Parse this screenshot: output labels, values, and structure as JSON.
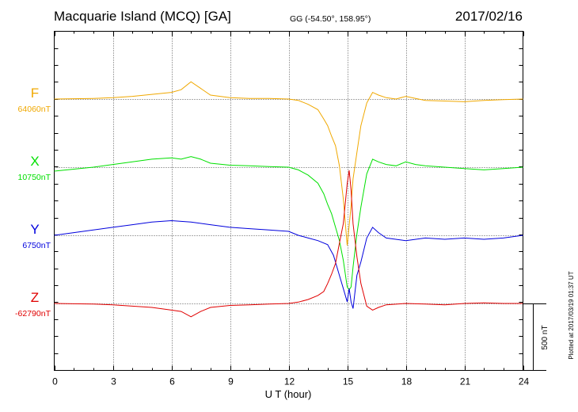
{
  "header": {
    "title": "Macquarie Island (MCQ)  [GA]",
    "coords": "GG (-54.50°, 158.95°)",
    "date": "2017/02/16"
  },
  "side_note": "Plotted at 2017/03/19 01:37 UT",
  "scale_bar": {
    "label": "500 nT",
    "value": 500,
    "unit": "nT"
  },
  "chart_data": {
    "type": "line",
    "xlabel": "U T (hour)",
    "xlim": [
      0,
      24
    ],
    "xticks": [
      "0",
      "3",
      "6",
      "9",
      "12",
      "15",
      "18",
      "21",
      "24"
    ],
    "grid": true,
    "units": "nT",
    "series": [
      {
        "name": "F",
        "baseline_label": "64060nT",
        "baseline": 64060,
        "color": "#f0a800",
        "x": [
          0,
          2,
          3,
          4,
          5,
          6,
          6.5,
          7,
          7.5,
          8,
          9,
          10,
          11,
          12,
          12.5,
          13,
          13.5,
          13.8,
          14.0,
          14.2,
          14.4,
          14.6,
          14.8,
          15.0,
          15.1,
          15.2,
          15.3,
          15.5,
          15.7,
          16.0,
          16.3,
          16.6,
          17,
          17.5,
          18,
          18.5,
          19,
          20,
          21,
          22,
          23,
          24
        ],
        "values": [
          0,
          5,
          10,
          20,
          35,
          50,
          70,
          130,
          80,
          30,
          10,
          5,
          5,
          0,
          -10,
          -40,
          -80,
          -150,
          -200,
          -280,
          -350,
          -500,
          -750,
          -1100,
          -950,
          -800,
          -600,
          -400,
          -200,
          -30,
          50,
          30,
          10,
          0,
          20,
          5,
          -10,
          -15,
          -20,
          -10,
          -5,
          0
        ]
      },
      {
        "name": "X",
        "baseline_label": "10750nT",
        "baseline": 10750,
        "color": "#00e000",
        "x": [
          0,
          2,
          3,
          4,
          5,
          6,
          6.5,
          7,
          7.5,
          8,
          9,
          10,
          11,
          12,
          12.5,
          13,
          13.5,
          13.8,
          14.0,
          14.2,
          14.4,
          14.6,
          14.8,
          15.0,
          15.1,
          15.2,
          15.3,
          15.5,
          15.7,
          16.0,
          16.3,
          16.6,
          17,
          17.5,
          18,
          18.5,
          19,
          20,
          21,
          22,
          23,
          24
        ],
        "values": [
          -30,
          0,
          20,
          40,
          60,
          70,
          60,
          80,
          60,
          30,
          15,
          10,
          5,
          0,
          -20,
          -60,
          -120,
          -200,
          -280,
          -350,
          -450,
          -550,
          -700,
          -900,
          -920,
          -900,
          -750,
          -500,
          -300,
          -50,
          60,
          40,
          20,
          10,
          40,
          20,
          10,
          0,
          -10,
          -20,
          -10,
          0
        ]
      },
      {
        "name": "Y",
        "baseline_label": "6750nT",
        "baseline": 6750,
        "color": "#0000dd",
        "x": [
          0,
          1,
          2,
          3,
          4,
          5,
          6,
          7,
          8,
          9,
          10,
          11,
          12,
          12.5,
          13,
          13.5,
          14.0,
          14.3,
          14.6,
          14.8,
          15.0,
          15.1,
          15.2,
          15.3,
          15.5,
          15.7,
          16.0,
          16.3,
          16.6,
          17,
          18,
          19,
          20,
          21,
          22,
          23,
          24
        ],
        "values": [
          0,
          20,
          40,
          60,
          80,
          100,
          110,
          100,
          80,
          60,
          50,
          40,
          30,
          0,
          -20,
          -40,
          -70,
          -150,
          -300,
          -400,
          -500,
          -400,
          -500,
          -550,
          -300,
          -200,
          -20,
          60,
          20,
          -20,
          -40,
          -20,
          -30,
          -20,
          -30,
          -20,
          0
        ]
      },
      {
        "name": "Z",
        "baseline_label": "-62790nT",
        "baseline": -62790,
        "color": "#e00000",
        "x": [
          0,
          2,
          3,
          4,
          5,
          6,
          6.5,
          7,
          7.5,
          8,
          9,
          10,
          11,
          12,
          12.5,
          13,
          13.5,
          13.8,
          14.0,
          14.2,
          14.4,
          14.6,
          14.8,
          15.0,
          15.1,
          15.2,
          15.3,
          15.5,
          15.7,
          16.0,
          16.3,
          16.6,
          17,
          18,
          19,
          20,
          21,
          22,
          23,
          24
        ],
        "values": [
          0,
          -5,
          -10,
          -20,
          -30,
          -50,
          -60,
          -100,
          -60,
          -30,
          -15,
          -10,
          -5,
          0,
          10,
          30,
          60,
          90,
          150,
          220,
          300,
          450,
          600,
          900,
          1000,
          850,
          600,
          350,
          150,
          -20,
          -50,
          -30,
          -10,
          0,
          -5,
          -10,
          0,
          5,
          0,
          0
        ]
      }
    ]
  }
}
